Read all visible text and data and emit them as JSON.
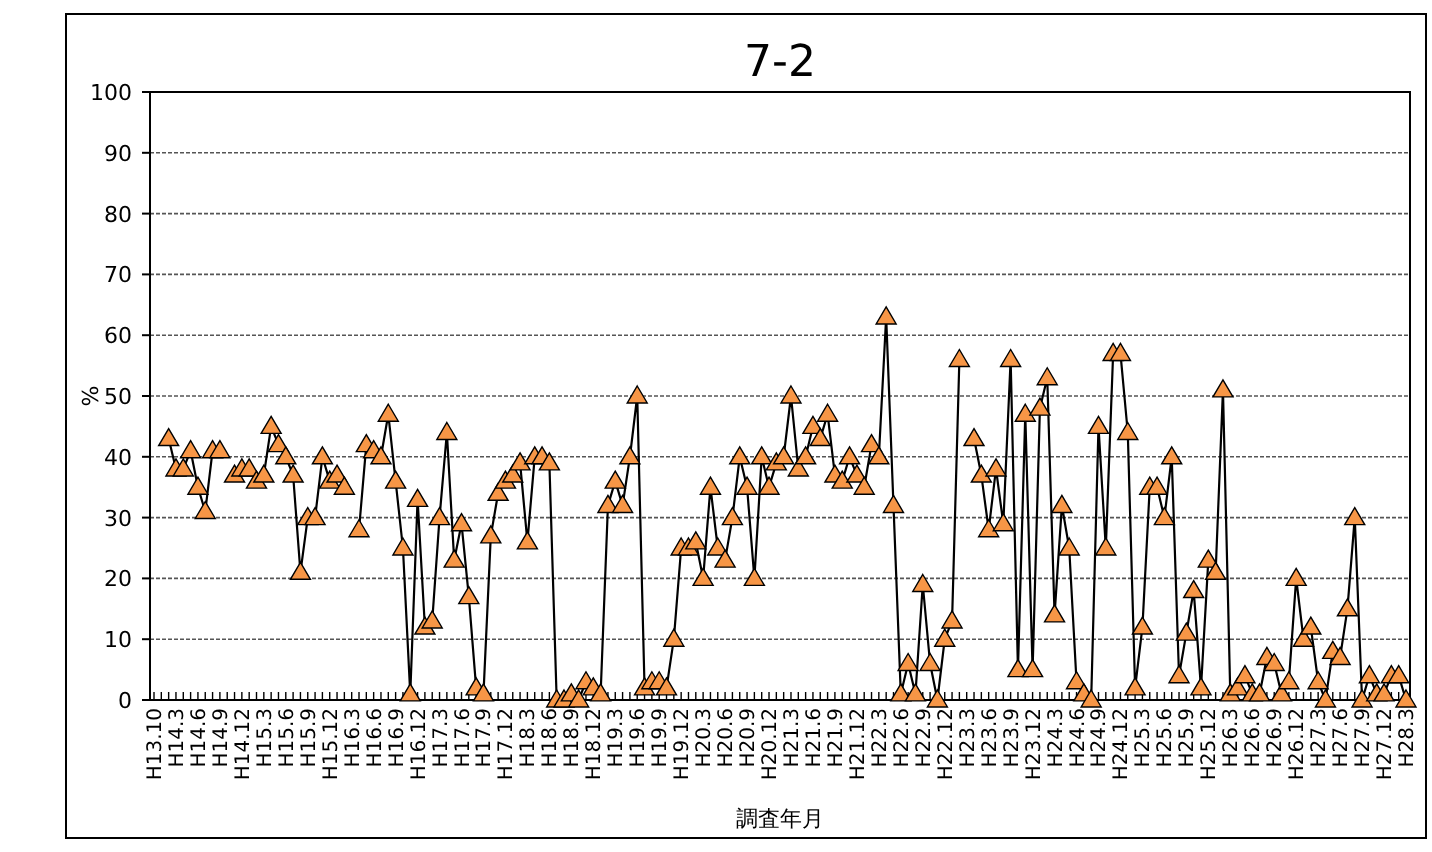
{
  "chart_data": {
    "type": "line",
    "title": "7-2",
    "xlabel": "調査年月",
    "ylabel": "%",
    "categories": [
      "H13.10",
      null,
      null,
      "H14.3",
      null,
      null,
      "H14.6",
      null,
      null,
      "H14.9",
      null,
      null,
      "H14.12",
      null,
      null,
      "H15.3",
      null,
      null,
      "H15.6",
      null,
      null,
      "H15.9",
      null,
      null,
      "H15.12",
      null,
      null,
      "H16.3",
      null,
      null,
      "H16.6",
      null,
      null,
      "H16.9",
      null,
      null,
      "H16.12",
      null,
      null,
      "H17.3",
      null,
      null,
      "H17.6",
      null,
      null,
      "H17.9",
      null,
      null,
      "H17.12",
      null,
      null,
      "H18.3",
      null,
      null,
      "H18.6",
      null,
      null,
      "H18.9",
      null,
      null,
      "H18.12",
      null,
      null,
      "H19.3",
      null,
      null,
      "H19.6",
      null,
      null,
      "H19.9",
      null,
      null,
      "H19.12",
      null,
      null,
      "H20.3",
      null,
      null,
      "H20.6",
      null,
      null,
      "H20.9",
      null,
      null,
      "H20.12",
      null,
      null,
      "H21.3",
      null,
      null,
      "H21.6",
      null,
      null,
      "H21.9",
      null,
      null,
      "H21.12",
      null,
      null,
      "H22.3",
      null,
      null,
      "H22.6",
      null,
      null,
      "H22.9",
      null,
      null,
      "H22.12",
      null,
      null,
      "H23.3",
      null,
      null,
      "H23.6",
      null,
      null,
      "H23.9",
      null,
      null,
      "H23.12",
      null,
      null,
      "H24.3",
      null,
      null,
      "H24.6",
      null,
      null,
      "H24.9",
      null,
      null,
      "H24.12",
      null,
      null,
      "H25.3",
      null,
      null,
      "H25.6",
      null,
      null,
      "H25.9",
      null,
      null,
      "H25.12",
      null,
      null,
      "H26.3",
      null,
      null,
      "H26.6",
      null,
      null,
      "H26.9",
      null,
      null,
      "H26.12",
      null,
      null,
      "H27.3",
      null,
      null,
      "H27.6",
      null,
      null,
      "H27.9",
      null,
      null,
      "H27.12",
      null,
      null,
      "H28.3"
    ],
    "series": [
      {
        "color": "#f79646",
        "values": [
          null,
          null,
          43,
          38,
          38,
          41,
          35,
          31,
          41,
          41,
          null,
          37,
          38,
          38,
          36,
          37,
          45,
          42,
          40,
          37,
          21,
          30,
          30,
          40,
          36,
          37,
          35,
          null,
          28,
          42,
          41,
          40,
          47,
          36,
          25,
          1,
          33,
          12,
          13,
          30,
          44,
          23,
          29,
          17,
          2,
          1,
          27,
          34,
          36,
          37,
          39,
          26,
          40,
          40,
          39,
          0,
          0,
          1,
          0,
          3,
          2,
          1,
          32,
          36,
          32,
          40,
          50,
          2,
          3,
          3,
          2,
          10,
          25,
          25,
          26,
          20,
          35,
          25,
          23,
          30,
          40,
          35,
          20,
          40,
          35,
          39,
          40,
          50,
          38,
          40,
          45,
          43,
          47,
          37,
          36,
          40,
          37,
          35,
          42,
          40,
          63,
          32,
          1,
          6,
          1,
          19,
          6,
          0,
          10,
          13,
          56,
          null,
          43,
          37,
          28,
          38,
          29,
          56,
          5,
          47,
          5,
          48,
          53,
          14,
          32,
          25,
          3,
          1,
          0,
          45,
          25,
          57,
          57,
          44,
          2,
          12,
          35,
          35,
          30,
          40,
          4,
          11,
          18,
          2,
          23,
          21,
          51,
          1,
          2,
          4,
          1,
          1,
          7,
          6,
          1,
          3,
          20,
          10,
          12,
          3,
          0,
          8,
          7,
          15,
          30,
          0,
          4,
          1,
          1,
          4,
          4,
          0
        ]
      }
    ],
    "ylim": [
      0,
      100
    ],
    "yticks": [
      0,
      10,
      20,
      30,
      40,
      50,
      60,
      70,
      80,
      90,
      100
    ],
    "grid": "y",
    "marker": "triangle",
    "line_style": "solid"
  }
}
